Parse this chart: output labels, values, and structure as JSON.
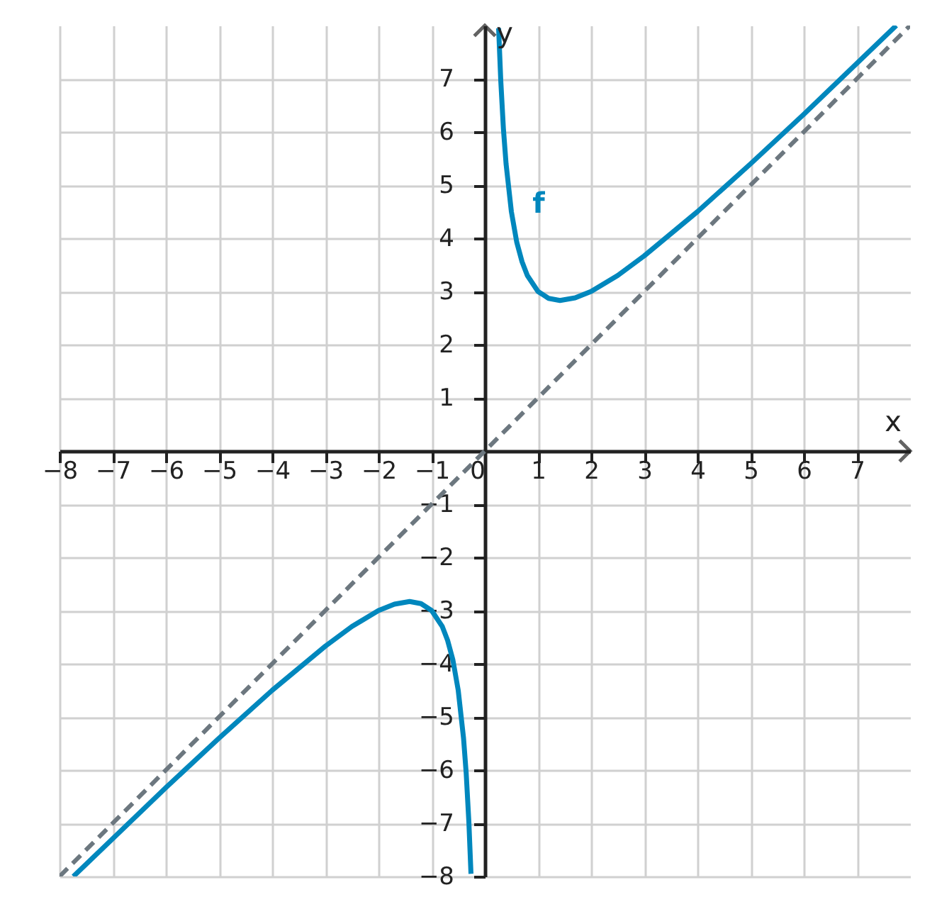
{
  "chart_data": {
    "type": "line",
    "xlabel": "x",
    "ylabel": "y",
    "xlim": [
      -8,
      8
    ],
    "ylim": [
      -8,
      8
    ],
    "xticks": [
      {
        "value": -8,
        "label": "−8"
      },
      {
        "value": -7,
        "label": "−7"
      },
      {
        "value": -6,
        "label": "−6"
      },
      {
        "value": -5,
        "label": "−5"
      },
      {
        "value": -4,
        "label": "−4"
      },
      {
        "value": -3,
        "label": "−3"
      },
      {
        "value": -2,
        "label": "−2"
      },
      {
        "value": -1,
        "label": "−1"
      },
      0,
      1,
      2,
      3,
      4,
      5,
      6,
      7
    ],
    "yticks": [
      {
        "value": -8,
        "label": "−8"
      },
      {
        "value": -7,
        "label": "−7"
      },
      {
        "value": -6,
        "label": "−6"
      },
      {
        "value": -5,
        "label": "−5"
      },
      {
        "value": -4,
        "label": "−4"
      },
      {
        "value": -3,
        "label": "−3"
      },
      {
        "value": -2,
        "label": "−2"
      },
      {
        "value": -1,
        "label": "−1"
      },
      1,
      2,
      3,
      4,
      5,
      6,
      7
    ],
    "grid": true,
    "marker": "none",
    "series": [
      {
        "name": "f",
        "color": "#0087bd",
        "line_style": "solid",
        "x": [
          -7.74,
          -7,
          -6,
          -5,
          -4,
          -3,
          -2.5,
          -2,
          -1.7,
          -1.414,
          -1.2,
          -1,
          -0.8,
          -0.7,
          -0.6,
          -0.5,
          -0.4,
          -0.35,
          -0.3,
          -0.26,
          0,
          0.26,
          0.3,
          0.35,
          0.4,
          0.5,
          0.6,
          0.7,
          0.8,
          1,
          1.2,
          1.414,
          1.7,
          2,
          2.5,
          3,
          4,
          5,
          6,
          7,
          7.74
        ],
        "values": [
          -8.0,
          -7.29,
          -6.33,
          -5.4,
          -4.5,
          -3.67,
          -3.3,
          -3.0,
          -2.88,
          -2.83,
          -2.87,
          -3.0,
          -3.3,
          -3.56,
          -3.93,
          -4.5,
          -5.4,
          -6.06,
          -6.97,
          -7.95,
          null,
          7.95,
          6.97,
          6.06,
          5.4,
          4.5,
          3.93,
          3.56,
          3.3,
          3.0,
          2.87,
          2.83,
          2.88,
          3.0,
          3.3,
          3.67,
          4.5,
          5.4,
          6.33,
          7.29,
          8.0
        ]
      },
      {
        "color": "#6c777f",
        "line_style": "dashed",
        "x": [
          -8,
          8
        ],
        "values": [
          -8,
          8
        ]
      }
    ]
  }
}
